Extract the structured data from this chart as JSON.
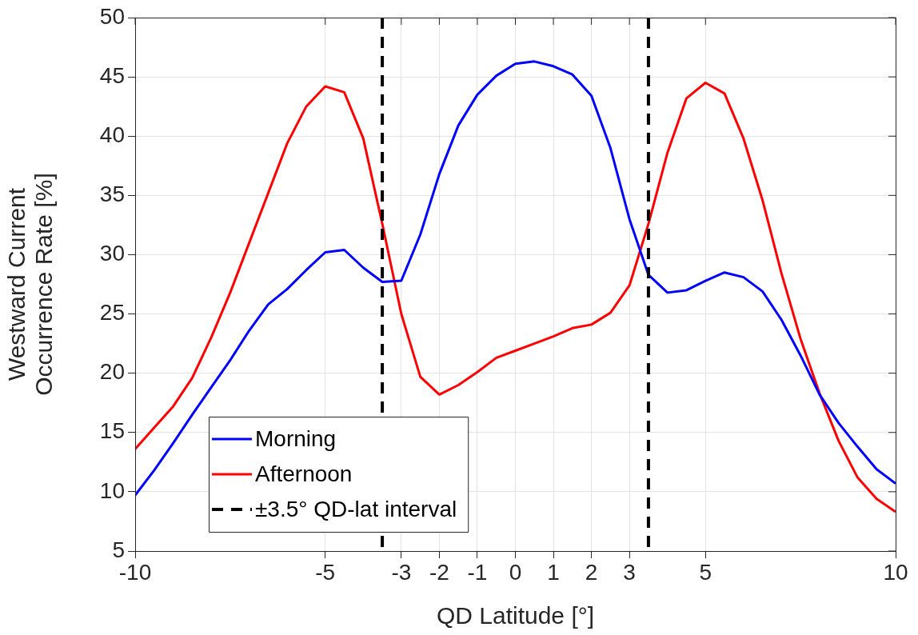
{
  "chart_data": {
    "type": "line",
    "xlabel": "QD Latitude [°]",
    "ylabel": "Westward Current\nOccurrence Rate [%]",
    "x": [
      -10,
      -9.5,
      -9,
      -8.5,
      -8,
      -7.5,
      -7,
      -6.5,
      -6,
      -5.5,
      -5,
      -4.5,
      -4,
      -3.5,
      -3,
      -2.5,
      -2,
      -1.5,
      -1,
      -0.5,
      0,
      0.5,
      1,
      1.5,
      2,
      2.5,
      3,
      3.5,
      4,
      4.5,
      5,
      5.5,
      6,
      6.5,
      7,
      7.5,
      8,
      8.5,
      9,
      9.5,
      10
    ],
    "series": [
      {
        "name": "Morning",
        "color": "#0000ff",
        "values": [
          9.7,
          11.8,
          14.1,
          16.5,
          18.8,
          21.1,
          23.6,
          25.8,
          27.1,
          28.7,
          30.2,
          30.4,
          28.9,
          27.7,
          27.8,
          31.7,
          36.8,
          40.9,
          43.5,
          45.1,
          46.1,
          46.3,
          45.9,
          45.2,
          43.4,
          39.0,
          33.0,
          28.3,
          26.8,
          27.0,
          27.8,
          28.5,
          28.1,
          26.9,
          24.5,
          21.5,
          18.2,
          15.8,
          13.8,
          11.9,
          10.7
        ]
      },
      {
        "name": "Afternoon",
        "color": "#ff0000",
        "values": [
          13.6,
          15.4,
          17.2,
          19.6,
          23.0,
          26.8,
          31.0,
          35.2,
          39.4,
          42.5,
          44.2,
          43.7,
          39.8,
          32.6,
          25.0,
          19.7,
          18.2,
          19.0,
          20.1,
          21.3,
          21.9,
          22.5,
          23.1,
          23.8,
          24.1,
          25.1,
          27.4,
          32.6,
          38.6,
          43.2,
          44.5,
          43.6,
          39.8,
          34.6,
          28.4,
          22.9,
          18.3,
          14.3,
          11.2,
          9.4,
          8.3
        ]
      }
    ],
    "ref_lines": [
      {
        "axis": "x",
        "value": -3.5,
        "label": "±3.5° QD-lat interval",
        "color": "#000000",
        "line_style": "dashed"
      },
      {
        "axis": "x",
        "value": 3.5,
        "color": "#000000",
        "line_style": "dashed"
      }
    ],
    "xlim": [
      -10,
      10
    ],
    "xticks": [
      -10,
      -5,
      -3,
      -2,
      -1,
      0,
      1,
      2,
      3,
      5,
      10
    ],
    "ylim": [
      5,
      50
    ],
    "yticks": [
      5,
      10,
      15,
      20,
      25,
      30,
      35,
      40,
      45,
      50
    ],
    "grid": true,
    "legend": "bottom left",
    "line_style": "solid",
    "marker": "none"
  }
}
